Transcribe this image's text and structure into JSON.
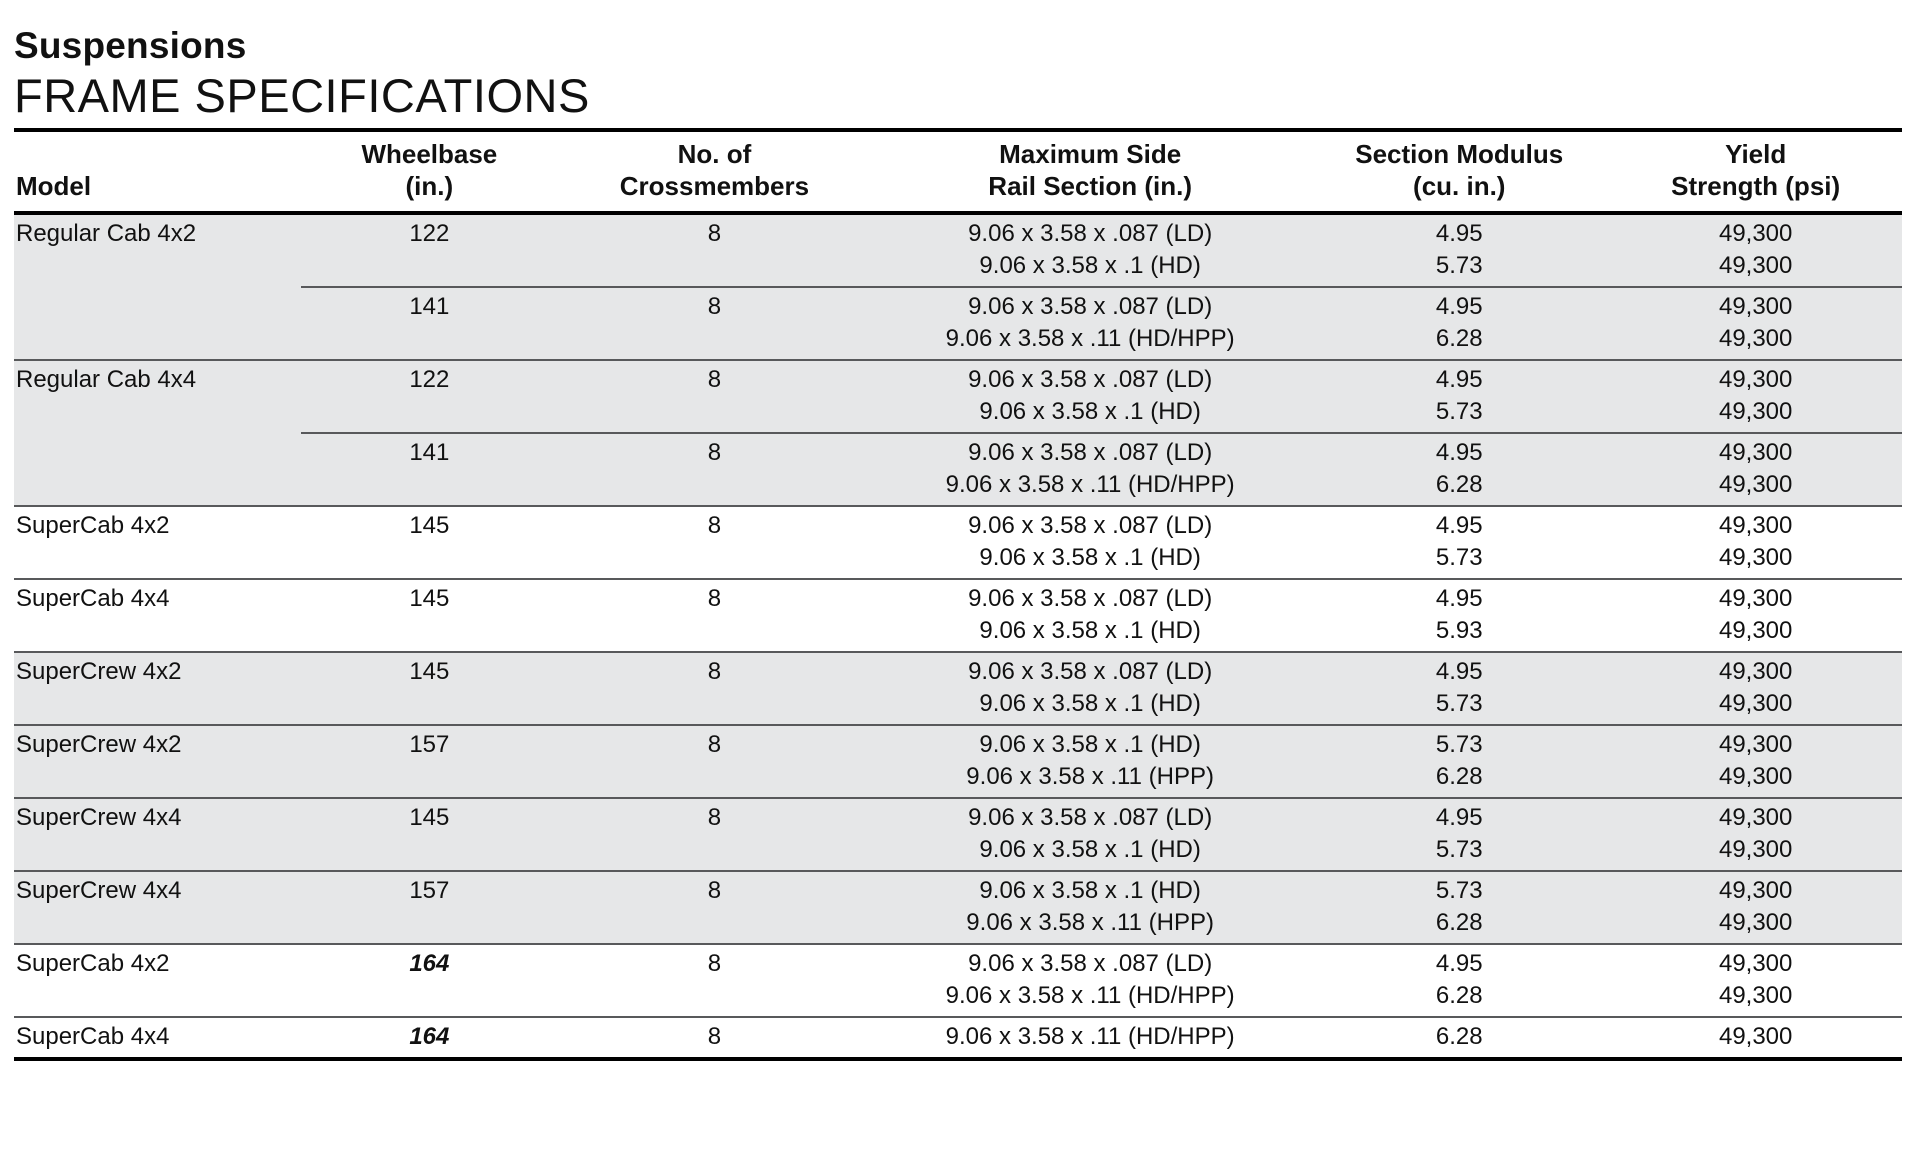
{
  "page": {
    "title": "Suspensions",
    "subtitle": "FRAME SPECIFICATIONS"
  },
  "table": {
    "headers": {
      "model": "Model",
      "wheelbase": [
        "Wheelbase",
        "(in.)"
      ],
      "crossmembers": [
        "No. of",
        "Crossmembers"
      ],
      "rail": [
        "Maximum Side",
        "Rail Section (in.)"
      ],
      "modulus": [
        "Section Modulus",
        "(cu. in.)"
      ],
      "yield": [
        "Yield",
        "Strength (psi)"
      ]
    },
    "groups": [
      {
        "model": "Regular Cab 4x2",
        "shaded": true,
        "subrows": [
          {
            "wheelbase": "122",
            "crossmembers": "8",
            "lines": [
              {
                "rail": "9.06 x 3.58 x .087 (LD)",
                "modulus": "4.95",
                "yield": "49,300"
              },
              {
                "rail": "9.06 x 3.58 x .1 (HD)",
                "modulus": "5.73",
                "yield": "49,300"
              }
            ]
          },
          {
            "wheelbase": "141",
            "crossmembers": "8",
            "lines": [
              {
                "rail": "9.06 x 3.58 x .087 (LD)",
                "modulus": "4.95",
                "yield": "49,300"
              },
              {
                "rail": "9.06 x 3.58 x .11 (HD/HPP)",
                "modulus": "6.28",
                "yield": "49,300"
              }
            ]
          }
        ]
      },
      {
        "model": "Regular Cab 4x4",
        "shaded": true,
        "subrows": [
          {
            "wheelbase": "122",
            "crossmembers": "8",
            "lines": [
              {
                "rail": "9.06 x 3.58 x .087 (LD)",
                "modulus": "4.95",
                "yield": "49,300"
              },
              {
                "rail": "9.06 x 3.58 x .1 (HD)",
                "modulus": "5.73",
                "yield": "49,300"
              }
            ]
          },
          {
            "wheelbase": "141",
            "crossmembers": "8",
            "lines": [
              {
                "rail": "9.06 x 3.58 x .087 (LD)",
                "modulus": "4.95",
                "yield": "49,300"
              },
              {
                "rail": "9.06 x 3.58 x .11 (HD/HPP)",
                "modulus": "6.28",
                "yield": "49,300"
              }
            ]
          }
        ]
      },
      {
        "model": "SuperCab 4x2",
        "shaded": false,
        "subrows": [
          {
            "wheelbase": "145",
            "crossmembers": "8",
            "lines": [
              {
                "rail": "9.06 x 3.58 x .087 (LD)",
                "modulus": "4.95",
                "yield": "49,300"
              },
              {
                "rail": "9.06 x 3.58 x .1 (HD)",
                "modulus": "5.73",
                "yield": "49,300"
              }
            ]
          }
        ]
      },
      {
        "model": "SuperCab 4x4",
        "shaded": false,
        "subrows": [
          {
            "wheelbase": "145",
            "crossmembers": "8",
            "lines": [
              {
                "rail": "9.06 x 3.58 x .087 (LD)",
                "modulus": "4.95",
                "yield": "49,300"
              },
              {
                "rail": "9.06 x 3.58 x .1 (HD)",
                "modulus": "5.93",
                "yield": "49,300"
              }
            ]
          }
        ]
      },
      {
        "model": "SuperCrew 4x2",
        "shaded": true,
        "subrows": [
          {
            "wheelbase": "145",
            "crossmembers": "8",
            "lines": [
              {
                "rail": "9.06 x 3.58 x .087 (LD)",
                "modulus": "4.95",
                "yield": "49,300"
              },
              {
                "rail": "9.06 x 3.58 x .1 (HD)",
                "modulus": "5.73",
                "yield": "49,300"
              }
            ]
          }
        ]
      },
      {
        "model": "SuperCrew 4x2",
        "shaded": true,
        "subrows": [
          {
            "wheelbase": "157",
            "crossmembers": "8",
            "lines": [
              {
                "rail": "9.06 x 3.58 x .1 (HD)",
                "modulus": "5.73",
                "yield": "49,300"
              },
              {
                "rail": "9.06 x 3.58 x .11 (HPP)",
                "modulus": "6.28",
                "yield": "49,300"
              }
            ]
          }
        ]
      },
      {
        "model": "SuperCrew 4x4",
        "shaded": true,
        "subrows": [
          {
            "wheelbase": "145",
            "crossmembers": "8",
            "lines": [
              {
                "rail": "9.06 x 3.58 x .087 (LD)",
                "modulus": "4.95",
                "yield": "49,300"
              },
              {
                "rail": "9.06 x 3.58 x .1 (HD)",
                "modulus": "5.73",
                "yield": "49,300"
              }
            ]
          }
        ]
      },
      {
        "model": "SuperCrew 4x4",
        "shaded": true,
        "subrows": [
          {
            "wheelbase": "157",
            "crossmembers": "8",
            "lines": [
              {
                "rail": "9.06 x 3.58 x .1 (HD)",
                "modulus": "5.73",
                "yield": "49,300"
              },
              {
                "rail": "9.06 x 3.58 x .11 (HPP)",
                "modulus": "6.28",
                "yield": "49,300"
              }
            ]
          }
        ]
      },
      {
        "model": "SuperCab 4x2",
        "shaded": false,
        "subrows": [
          {
            "wheelbase": "164",
            "wheelbase_emphasis": true,
            "crossmembers": "8",
            "lines": [
              {
                "rail": "9.06 x 3.58 x .087 (LD)",
                "modulus": "4.95",
                "yield": "49,300"
              },
              {
                "rail": "9.06 x 3.58 x .11 (HD/HPP)",
                "modulus": "6.28",
                "yield": "49,300"
              }
            ]
          }
        ]
      },
      {
        "model": "SuperCab 4x4",
        "shaded": false,
        "subrows": [
          {
            "wheelbase": "164",
            "wheelbase_emphasis": true,
            "crossmembers": "8",
            "lines": [
              {
                "rail": "9.06 x 3.58 x .11 (HD/HPP)",
                "modulus": "6.28",
                "yield": "49,300"
              }
            ]
          }
        ]
      }
    ]
  }
}
